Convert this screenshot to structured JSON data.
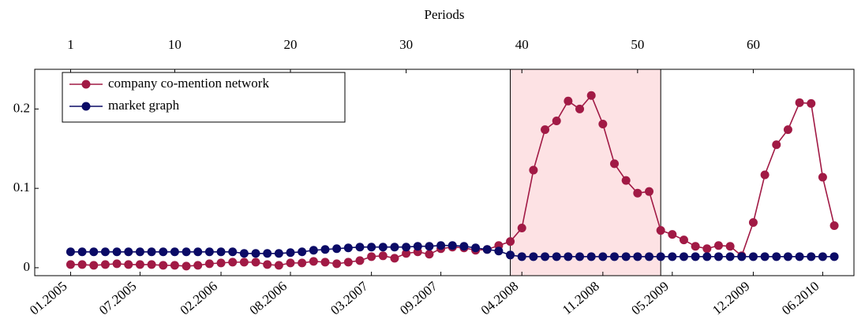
{
  "chart_data": {
    "type": "line",
    "top_xlabel": "Periods",
    "x": [
      1,
      2,
      3,
      4,
      5,
      6,
      7,
      8,
      9,
      10,
      11,
      12,
      13,
      14,
      15,
      16,
      17,
      18,
      19,
      20,
      21,
      22,
      23,
      24,
      25,
      26,
      27,
      28,
      29,
      30,
      31,
      32,
      33,
      34,
      35,
      36,
      37,
      38,
      39,
      40,
      41,
      42,
      43,
      44,
      45,
      46,
      47,
      48,
      49,
      50,
      51,
      52,
      53,
      54,
      55,
      56,
      57,
      58,
      59,
      60,
      61,
      62,
      63,
      64,
      65,
      66,
      67
    ],
    "series": [
      {
        "name": "company co-mention network",
        "color": "#a11a45",
        "values": [
          0.004,
          0.004,
          0.003,
          0.004,
          0.005,
          0.004,
          0.004,
          0.004,
          0.003,
          0.003,
          0.002,
          0.003,
          0.005,
          0.006,
          0.007,
          0.007,
          0.007,
          0.004,
          0.003,
          0.006,
          0.006,
          0.008,
          0.007,
          0.005,
          0.007,
          0.009,
          0.014,
          0.015,
          0.012,
          0.018,
          0.02,
          0.017,
          0.024,
          0.026,
          0.025,
          0.022,
          0.023,
          0.028,
          0.033,
          0.05,
          0.123,
          0.174,
          0.185,
          0.21,
          0.2,
          0.217,
          0.181,
          0.131,
          0.11,
          0.094,
          0.096,
          0.047,
          0.042,
          0.035,
          0.027,
          0.024,
          0.028,
          0.027,
          0.015,
          0.057,
          0.117,
          0.155,
          0.174,
          0.208,
          0.207,
          0.114,
          0.053
        ]
      },
      {
        "name": "market graph",
        "color": "#0b0b66",
        "values": [
          0.02,
          0.02,
          0.02,
          0.02,
          0.02,
          0.02,
          0.02,
          0.02,
          0.02,
          0.02,
          0.02,
          0.02,
          0.02,
          0.02,
          0.02,
          0.018,
          0.018,
          0.018,
          0.018,
          0.019,
          0.02,
          0.022,
          0.023,
          0.024,
          0.025,
          0.026,
          0.026,
          0.026,
          0.026,
          0.026,
          0.027,
          0.027,
          0.028,
          0.028,
          0.027,
          0.025,
          0.023,
          0.021,
          0.016,
          0.014,
          0.014,
          0.014,
          0.014,
          0.014,
          0.014,
          0.014,
          0.014,
          0.014,
          0.014,
          0.014,
          0.014,
          0.014,
          0.014,
          0.014,
          0.014,
          0.014,
          0.014,
          0.014,
          0.014,
          0.014,
          0.014,
          0.014,
          0.014,
          0.014,
          0.014,
          0.014,
          0.014
        ]
      }
    ],
    "xlim": [
      -2.1,
      68.7
    ],
    "ylim": [
      -0.01,
      0.25
    ],
    "yticks": [
      0,
      0.1,
      0.2
    ],
    "top_xticks": [
      1,
      10,
      20,
      30,
      40,
      50,
      60
    ],
    "xticks": [
      {
        "value": 1,
        "label": "01.2005"
      },
      {
        "value": 7,
        "label": "07.2005"
      },
      {
        "value": 14,
        "label": "02.2006"
      },
      {
        "value": 20,
        "label": "08.2006"
      },
      {
        "value": 27,
        "label": "03.2007"
      },
      {
        "value": 33,
        "label": "09.2007"
      },
      {
        "value": 40,
        "label": "04.2008"
      },
      {
        "value": 47,
        "label": "11.2008"
      },
      {
        "value": 53,
        "label": "05.2009"
      },
      {
        "value": 60,
        "label": "12.2009"
      },
      {
        "value": 66,
        "label": "06.2010"
      }
    ],
    "shaded_range": [
      39,
      52
    ],
    "shade_color": "#fde2e4",
    "legend": "upper left"
  }
}
